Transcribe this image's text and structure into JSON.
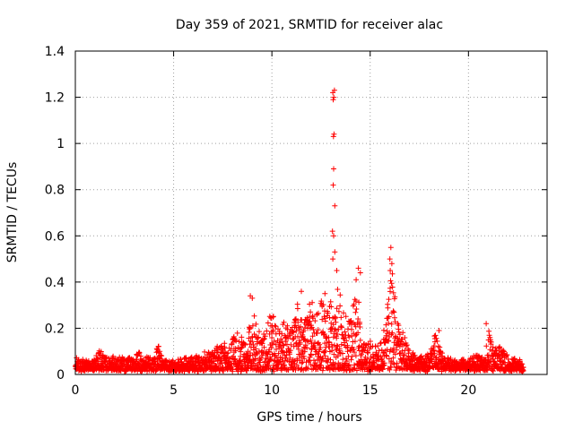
{
  "chart_data": {
    "type": "scatter",
    "title": "Day 359 of 2021, SRMTID for receiver alac",
    "xlabel": "GPS time / hours",
    "ylabel": "SRMTID / TECUs",
    "xlim": [
      0,
      24
    ],
    "ylim": [
      0,
      1.4
    ],
    "xticks": [
      0,
      5,
      10,
      15,
      20
    ],
    "yticks": [
      0,
      0.2,
      0.4,
      0.6,
      0.8,
      1,
      1.2,
      1.4
    ],
    "xtick_labels": [
      "0",
      "5",
      "10",
      "15",
      "20"
    ],
    "ytick_labels": [
      "0",
      "0.2",
      "0.4",
      "0.6",
      "0.8",
      "1",
      "1.2",
      "1.4"
    ],
    "grid": true,
    "marker": "+",
    "color": "#ff0000",
    "series": [
      {
        "name": "SRMTID",
        "envelope_x": [
          0,
          0.5,
          1,
          1.3,
          1.5,
          2,
          2.5,
          3,
          3.2,
          3.5,
          4,
          4.2,
          4.5,
          5,
          5.5,
          6,
          6.5,
          7,
          7.5,
          8,
          8.3,
          8.7,
          9,
          9.3,
          9.6,
          10,
          10.3,
          10.6,
          11,
          11.3,
          11.6,
          12,
          12.3,
          12.6,
          12.9,
          13.1,
          13.4,
          13.7,
          14,
          14.3,
          14.6,
          15,
          15.3,
          15.6,
          15.9,
          16.1,
          16.4,
          16.7,
          17,
          17.3,
          17.7,
          18,
          18.3,
          18.6,
          19,
          19.4,
          19.8,
          20,
          20.4,
          20.8,
          21,
          21.3,
          21.6,
          22,
          22.4,
          22.8
        ],
        "envelope_y": [
          0.07,
          0.06,
          0.07,
          0.13,
          0.08,
          0.07,
          0.08,
          0.07,
          0.1,
          0.07,
          0.07,
          0.14,
          0.07,
          0.06,
          0.07,
          0.08,
          0.09,
          0.1,
          0.14,
          0.15,
          0.18,
          0.14,
          0.3,
          0.2,
          0.17,
          0.28,
          0.22,
          0.24,
          0.2,
          0.3,
          0.22,
          0.33,
          0.27,
          0.35,
          0.34,
          0.3,
          0.4,
          0.28,
          0.25,
          0.43,
          0.15,
          0.15,
          0.12,
          0.15,
          0.35,
          0.5,
          0.22,
          0.18,
          0.1,
          0.08,
          0.08,
          0.09,
          0.18,
          0.1,
          0.08,
          0.06,
          0.07,
          0.06,
          0.09,
          0.07,
          0.2,
          0.1,
          0.13,
          0.08,
          0.07,
          0.05
        ],
        "spike_points": [
          [
            13.1,
            1.22
          ],
          [
            13.15,
            1.2
          ],
          [
            13.18,
            1.23
          ],
          [
            13.12,
            1.19
          ],
          [
            13.13,
            1.03
          ],
          [
            13.16,
            1.04
          ],
          [
            13.14,
            0.89
          ],
          [
            13.12,
            0.82
          ],
          [
            13.2,
            0.73
          ],
          [
            13.08,
            0.62
          ],
          [
            13.14,
            0.6
          ],
          [
            13.2,
            0.53
          ],
          [
            13.1,
            0.5
          ],
          [
            13.3,
            0.45
          ],
          [
            14.4,
            0.46
          ],
          [
            14.5,
            0.44
          ],
          [
            16.05,
            0.55
          ],
          [
            16.0,
            0.5
          ],
          [
            16.1,
            0.48
          ],
          [
            16.02,
            0.45
          ],
          [
            8.9,
            0.34
          ],
          [
            9.0,
            0.33
          ],
          [
            11.5,
            0.36
          ],
          [
            12.7,
            0.35
          ],
          [
            20.9,
            0.22
          ],
          [
            18.5,
            0.19
          ]
        ]
      }
    ]
  }
}
